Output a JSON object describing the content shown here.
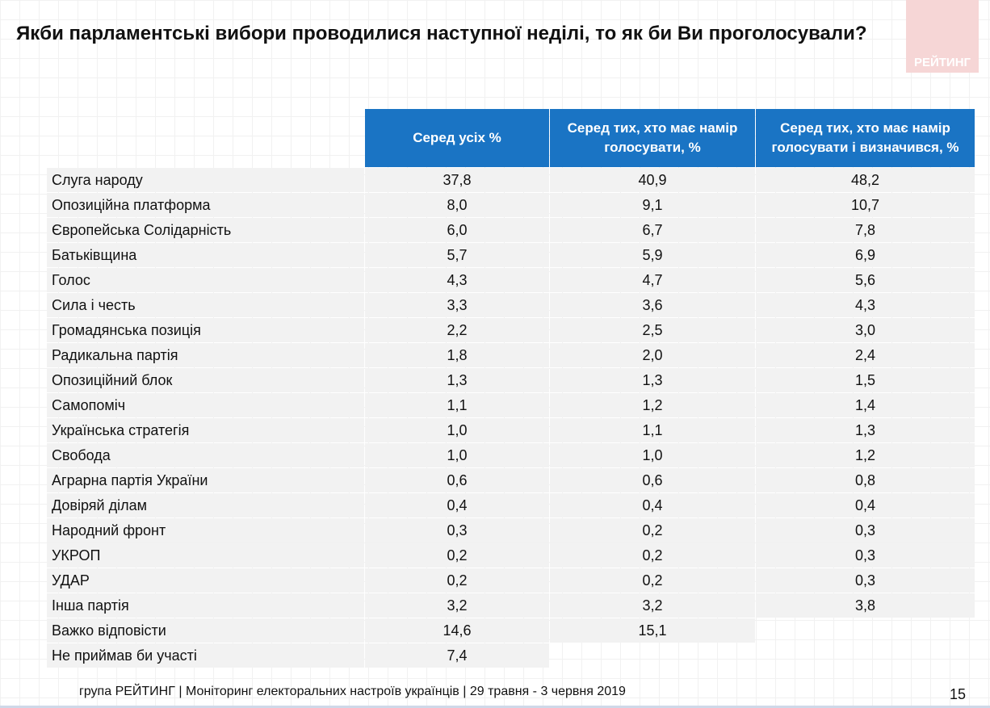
{
  "header": {
    "title": "Якби парламентські вибори проводилися наступної неділі, то як би Ви проголосували?",
    "logo": "РЕЙТИНГ"
  },
  "table": {
    "columns": [
      "Серед усіх %",
      "Серед тих, хто має намір голосувати, %",
      "Серед тих, хто має намір голосувати і визначився, %"
    ],
    "rows": [
      [
        "Слуга народу",
        "37,8",
        "40,9",
        "48,2"
      ],
      [
        "Опозиційна платформа",
        "8,0",
        "9,1",
        "10,7"
      ],
      [
        "Європейська Солідарність",
        "6,0",
        "6,7",
        "7,8"
      ],
      [
        "Батьківщина",
        "5,7",
        "5,9",
        "6,9"
      ],
      [
        "Голос",
        "4,3",
        "4,7",
        "5,6"
      ],
      [
        "Сила і честь",
        "3,3",
        "3,6",
        "4,3"
      ],
      [
        "Громадянська позиція",
        "2,2",
        "2,5",
        "3,0"
      ],
      [
        "Радикальна партія",
        "1,8",
        "2,0",
        "2,4"
      ],
      [
        "Опозиційний блок",
        "1,3",
        "1,3",
        "1,5"
      ],
      [
        "Самопоміч",
        "1,1",
        "1,2",
        "1,4"
      ],
      [
        "Українська стратегія",
        "1,0",
        "1,1",
        "1,3"
      ],
      [
        "Свобода",
        "1,0",
        "1,0",
        "1,2"
      ],
      [
        "Аграрна партія України",
        "0,6",
        "0,6",
        "0,8"
      ],
      [
        "Довіряй ділам",
        "0,4",
        "0,4",
        "0,4"
      ],
      [
        "Народний фронт",
        "0,3",
        "0,2",
        "0,3"
      ],
      [
        "УКРОП",
        "0,2",
        "0,2",
        "0,3"
      ],
      [
        "УДАР",
        "0,2",
        "0,2",
        "0,3"
      ],
      [
        "Інша партія",
        "3,2",
        "3,2",
        "3,8"
      ],
      [
        "Важко відповісти",
        "14,6",
        "15,1"
      ],
      [
        "Не приймав би участі",
        "7,4"
      ]
    ]
  },
  "footer": {
    "source": "група РЕЙТИНГ | Моніторинг електоральних настроїв українців  | 29 травня - 3 червня 2019",
    "page": "15"
  }
}
